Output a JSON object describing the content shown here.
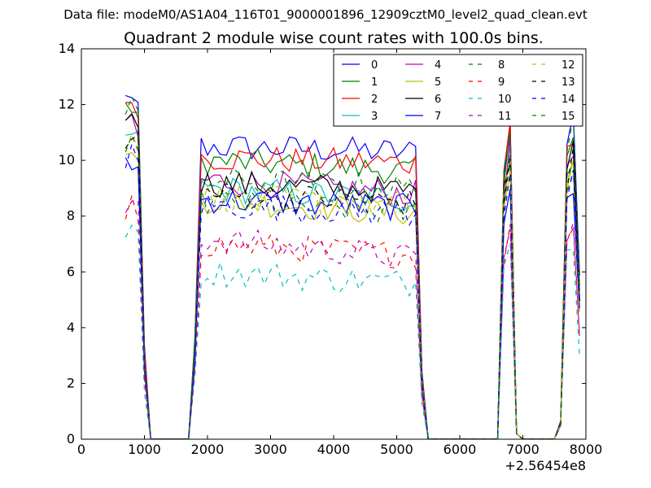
{
  "suptitle": "Data file: modeM0/AS1A04_116T01_9000001896_12909cztM0_level2_quad_clean.evt",
  "chart_data": {
    "type": "line",
    "title": "Quadrant 2 module wise count rates with 100.0s bins.",
    "xlabel": "",
    "ylabel": "",
    "xlim": [
      0,
      8000
    ],
    "ylim": [
      0,
      14
    ],
    "x_offset_label": "+2.56454e8",
    "x_ticks": [
      0,
      1000,
      2000,
      3000,
      4000,
      5000,
      6000,
      7000,
      8000
    ],
    "x_tick_labels": [
      "0",
      "1000",
      "2000",
      "3000",
      "4000",
      "5000",
      "6000",
      "7000",
      "8000"
    ],
    "y_ticks": [
      0,
      2,
      4,
      6,
      8,
      10,
      12,
      14
    ],
    "y_tick_labels": [
      "0",
      "2",
      "4",
      "6",
      "8",
      "10",
      "12",
      "14"
    ],
    "legend_position": "top-right",
    "x": [
      700,
      800,
      900,
      1000,
      1100,
      1200,
      1300,
      1400,
      1500,
      1600,
      1700,
      1800,
      1900,
      2000,
      2100,
      2200,
      2300,
      2400,
      2500,
      2600,
      2700,
      2800,
      2900,
      3000,
      3100,
      3200,
      3300,
      3400,
      3500,
      3600,
      3700,
      3800,
      3900,
      4000,
      4100,
      4200,
      4300,
      4400,
      4500,
      4600,
      4700,
      4800,
      4900,
      5000,
      5100,
      5200,
      5300,
      5400,
      5500,
      5600,
      5700,
      5800,
      5900,
      6000,
      6100,
      6200,
      6300,
      6400,
      6500,
      6600,
      6700,
      6800,
      6900,
      7000,
      7100,
      7200,
      7300,
      7400,
      7500,
      7600,
      7700,
      7800,
      7900
    ],
    "series": [
      {
        "name": "0",
        "color": "#0000ff",
        "dash": "solid",
        "base": 10.5,
        "peak": 12.4,
        "mid": 10.3
      },
      {
        "name": "1",
        "color": "#008000",
        "dash": "solid",
        "base": 10.0,
        "peak": 12.1,
        "mid": 9.6
      },
      {
        "name": "2",
        "color": "#ff0000",
        "dash": "solid",
        "base": 10.1,
        "peak": 11.9,
        "mid": 9.9
      },
      {
        "name": "3",
        "color": "#00bfbf",
        "dash": "solid",
        "base": 9.0,
        "peak": 11.2,
        "mid": 8.6
      },
      {
        "name": "4",
        "color": "#bf00bf",
        "dash": "solid",
        "base": 9.3,
        "peak": 11.4,
        "mid": 8.8
      },
      {
        "name": "5",
        "color": "#bfbf00",
        "dash": "solid",
        "base": 8.6,
        "peak": 10.6,
        "mid": 8.1
      },
      {
        "name": "6",
        "color": "#000000",
        "dash": "solid",
        "base": 9.2,
        "peak": 11.3,
        "mid": 8.9
      },
      {
        "name": "7",
        "color": "#0000ff",
        "dash": "solid",
        "base": 8.6,
        "peak": 10.0,
        "mid": 8.3
      },
      {
        "name": "8",
        "color": "#008000",
        "dash": "dashed",
        "base": 8.5,
        "peak": 10.5,
        "mid": 8.1
      },
      {
        "name": "9",
        "color": "#ff0000",
        "dash": "dashed",
        "base": 7.0,
        "peak": 8.4,
        "mid": 6.6
      },
      {
        "name": "10",
        "color": "#00bfbf",
        "dash": "dashed",
        "base": 6.0,
        "peak": 7.6,
        "mid": 5.6
      },
      {
        "name": "11",
        "color": "#bf00bf",
        "dash": "dashed",
        "base": 7.2,
        "peak": 8.7,
        "mid": 6.5
      },
      {
        "name": "12",
        "color": "#bfbf00",
        "dash": "dashed",
        "base": 8.7,
        "peak": 10.9,
        "mid": 8.4
      },
      {
        "name": "13",
        "color": "#000000",
        "dash": "dashed",
        "base": 8.8,
        "peak": 11.0,
        "mid": 8.5
      },
      {
        "name": "14",
        "color": "#0000ff",
        "dash": "dashed",
        "base": 8.4,
        "peak": 10.3,
        "mid": 8.1
      },
      {
        "name": "15",
        "color": "#008000",
        "dash": "dashed",
        "base": 9.3,
        "peak": 12.2,
        "mid": 9.0
      }
    ]
  }
}
